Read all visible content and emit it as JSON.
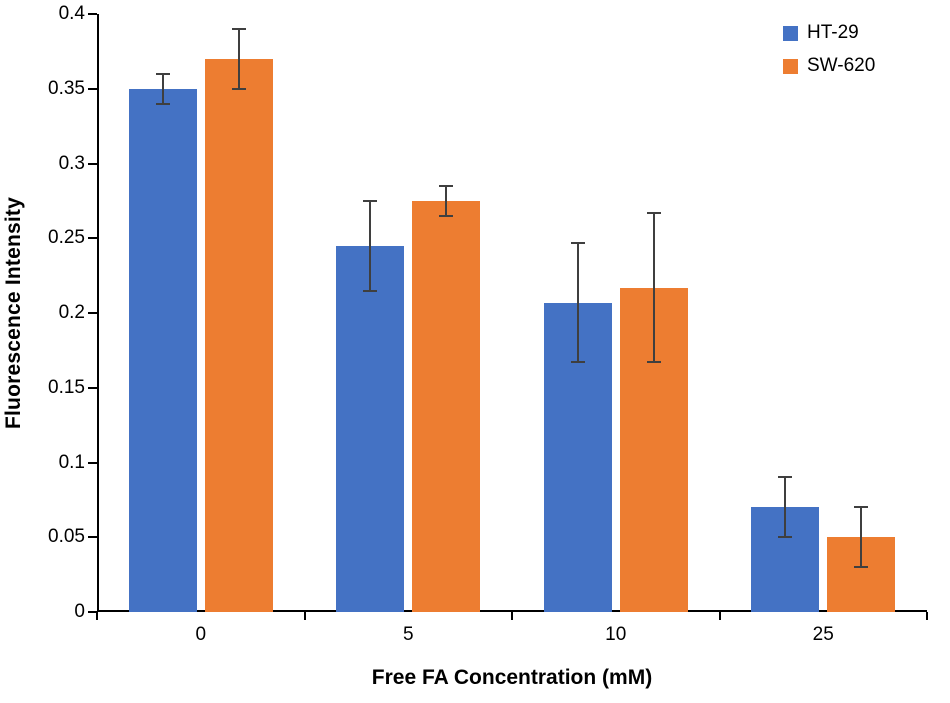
{
  "chart_data": {
    "type": "bar",
    "title": "",
    "xlabel": "Free FA Concentration (mM)",
    "ylabel": "Fluorescence Intensity",
    "categories": [
      "0",
      "5",
      "10",
      "25"
    ],
    "series": [
      {
        "name": "HT-29",
        "color": "#4472C4",
        "values": [
          0.35,
          0.245,
          0.207,
          0.07
        ],
        "errors": [
          0.01,
          0.03,
          0.04,
          0.02
        ]
      },
      {
        "name": "SW-620",
        "color": "#ED7D31",
        "values": [
          0.37,
          0.275,
          0.217,
          0.05
        ],
        "errors": [
          0.02,
          0.01,
          0.05,
          0.02
        ]
      }
    ],
    "ylim": [
      0,
      0.4
    ],
    "ytick_step": 0.05,
    "ytick_labels": [
      "0",
      "0.05",
      "0.1",
      "0.15",
      "0.2",
      "0.25",
      "0.3",
      "0.35",
      "0.4"
    ],
    "grid": false,
    "legend_position": "top-right"
  }
}
